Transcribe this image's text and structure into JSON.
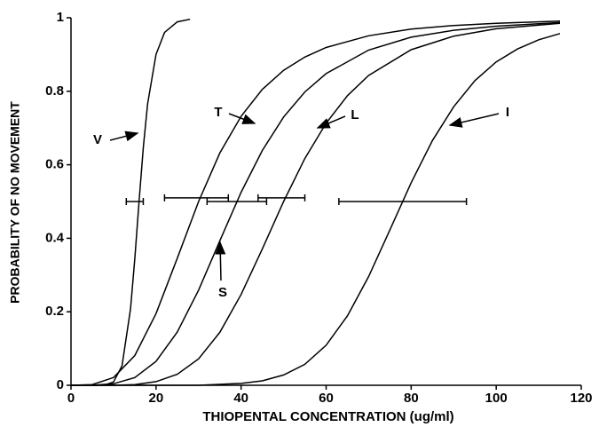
{
  "chart_data": {
    "type": "line",
    "xlabel": "THIOPENTAL CONCENTRATION (ug/ml)",
    "ylabel": "PROBABILITY OF NO MOVEMENT",
    "xlim": [
      0,
      120
    ],
    "xticks": [
      0,
      20,
      40,
      60,
      80,
      100,
      120
    ],
    "ylim": [
      0,
      1
    ],
    "yticks": [
      0,
      0.2,
      0.4,
      0.6,
      0.8,
      1
    ],
    "color": "#000000",
    "series": [
      {
        "name": "V",
        "x": [
          5,
          8,
          10,
          12,
          14,
          15,
          16,
          17,
          18,
          20,
          22,
          25,
          28
        ],
        "values": [
          0,
          0.001,
          0.009,
          0.053,
          0.208,
          0.344,
          0.5,
          0.647,
          0.765,
          0.9,
          0.96,
          0.989,
          0.996
        ]
      },
      {
        "name": "T",
        "x": [
          0,
          5,
          10,
          15,
          20,
          25,
          30,
          35,
          40,
          45,
          50,
          55,
          60,
          70,
          80,
          90,
          100,
          115
        ],
        "values": [
          0,
          0.002,
          0.021,
          0.081,
          0.195,
          0.346,
          0.5,
          0.632,
          0.732,
          0.805,
          0.857,
          0.893,
          0.919,
          0.951,
          0.969,
          0.979,
          0.985,
          0.991
        ]
      },
      {
        "name": "L",
        "x": [
          0,
          10,
          15,
          20,
          25,
          30,
          35,
          40,
          45,
          50,
          55,
          60,
          65,
          70,
          80,
          90,
          100,
          115
        ],
        "values": [
          0,
          0,
          0.002,
          0.01,
          0.03,
          0.072,
          0.144,
          0.247,
          0.371,
          0.5,
          0.617,
          0.713,
          0.788,
          0.843,
          0.913,
          0.95,
          0.97,
          0.985
        ]
      },
      {
        "name": "I",
        "x": [
          0,
          20,
          30,
          40,
          45,
          50,
          55,
          60,
          65,
          70,
          75,
          80,
          85,
          90,
          95,
          100,
          105,
          110,
          115
        ],
        "values": [
          0,
          0,
          0,
          0.005,
          0.012,
          0.028,
          0.057,
          0.109,
          0.189,
          0.296,
          0.423,
          0.551,
          0.666,
          0.758,
          0.829,
          0.88,
          0.915,
          0.94,
          0.957
        ]
      },
      {
        "name": "S",
        "x": [
          0,
          5,
          10,
          15,
          20,
          25,
          30,
          35,
          40,
          45,
          50,
          55,
          60,
          70,
          80,
          90,
          100,
          115
        ],
        "values": [
          0,
          0,
          0.004,
          0.021,
          0.065,
          0.145,
          0.259,
          0.393,
          0.525,
          0.639,
          0.73,
          0.798,
          0.848,
          0.912,
          0.947,
          0.966,
          0.977,
          0.987
        ]
      }
    ],
    "error_bars": [
      {
        "y": 0.5,
        "low": 13,
        "high": 17
      },
      {
        "y": 0.51,
        "low": 22,
        "high": 37
      },
      {
        "y": 0.5,
        "low": 32,
        "high": 46
      },
      {
        "y": 0.51,
        "low": 44,
        "high": 55
      },
      {
        "y": 0.5,
        "low": 63,
        "high": 93
      }
    ]
  }
}
